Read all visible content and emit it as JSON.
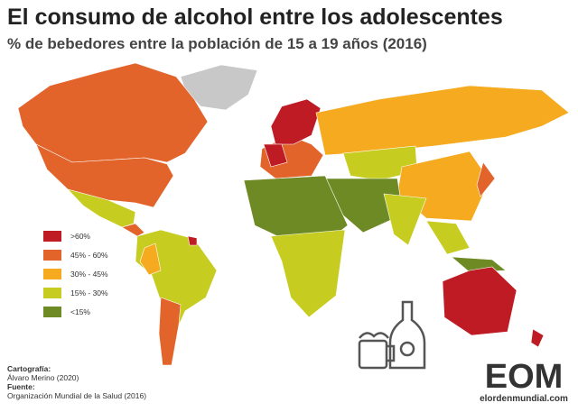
{
  "header": {
    "title": "El consumo de alcohol entre los adolescentes",
    "subtitle": "% de bebedores entre la población de 15 a 19 años (2016)"
  },
  "legend": {
    "items": [
      {
        "label": ">60%",
        "color": "#bf1b24"
      },
      {
        "label": "45% - 60%",
        "color": "#e2642b"
      },
      {
        "label": "30% - 45%",
        "color": "#f6aa1f"
      },
      {
        "label": "15% - 30%",
        "color": "#c6cd20"
      },
      {
        "label": "<15%",
        "color": "#6e8a25"
      }
    ]
  },
  "credits": {
    "cartography_label": "Cartografía:",
    "cartography": "Álvaro Merino (2020)",
    "source_label": "Fuente:",
    "source": "Organización Mundial de la Salud (2016)"
  },
  "logo": {
    "mark": "EOM",
    "site": "elordenmundial.com"
  }
}
